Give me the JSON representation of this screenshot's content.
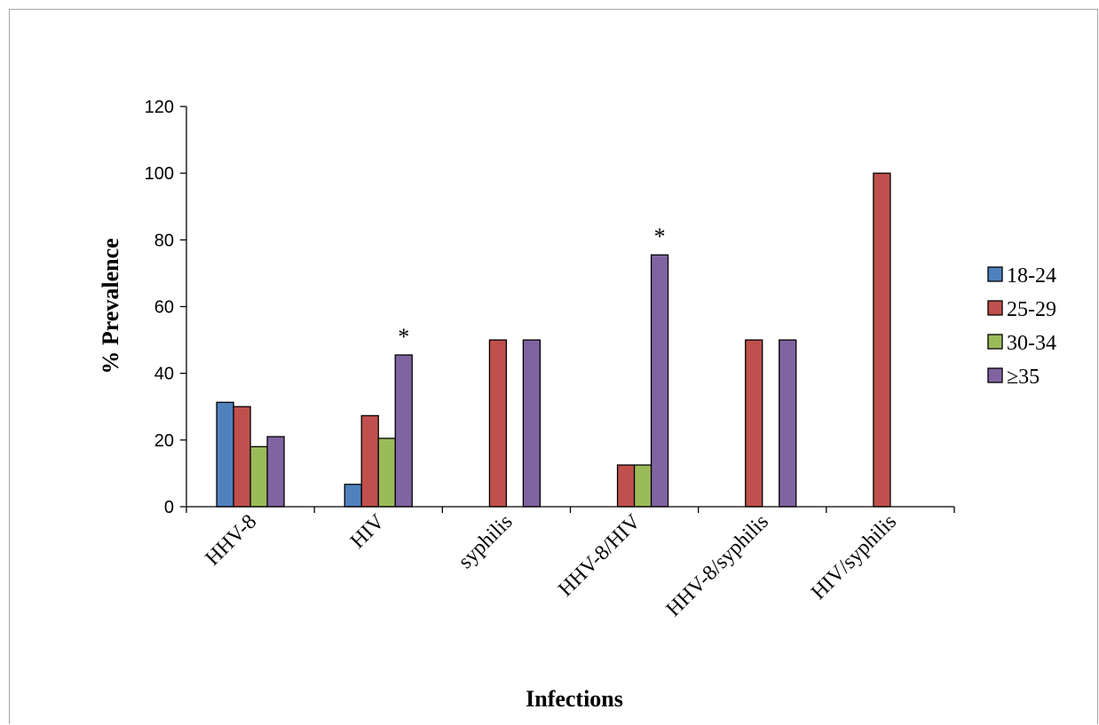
{
  "chart_data": {
    "type": "bar",
    "title": "",
    "xlabel": "Infections",
    "ylabel": "% Prevalence",
    "ylim": [
      0,
      120
    ],
    "yticks": [
      0,
      20,
      40,
      60,
      80,
      100,
      120
    ],
    "categories": [
      "HHV-8",
      "HIV",
      "syphilis",
      "HHV-8/HIV",
      "HHV-8/syphilis",
      "HIV/syphilis"
    ],
    "series": [
      {
        "name": "18-24",
        "color": "#4f81bd",
        "values": [
          31.3,
          6.7,
          0,
          0,
          0,
          0
        ]
      },
      {
        "name": "25-29",
        "color": "#c0504d",
        "values": [
          30,
          27.3,
          50,
          12.5,
          50,
          100
        ]
      },
      {
        "name": "30-34",
        "color": "#9bbb59",
        "values": [
          18,
          20.5,
          0,
          12.5,
          0,
          0
        ]
      },
      {
        "name": "≥35",
        "color": "#8064a2",
        "values": [
          21,
          45.5,
          50,
          75.5,
          50,
          0
        ]
      }
    ],
    "annotations": [
      {
        "text": "*",
        "category": "HIV"
      },
      {
        "text": "*",
        "category": "HHV-8/HIV"
      }
    ],
    "grid": false,
    "legend_position": "right"
  }
}
